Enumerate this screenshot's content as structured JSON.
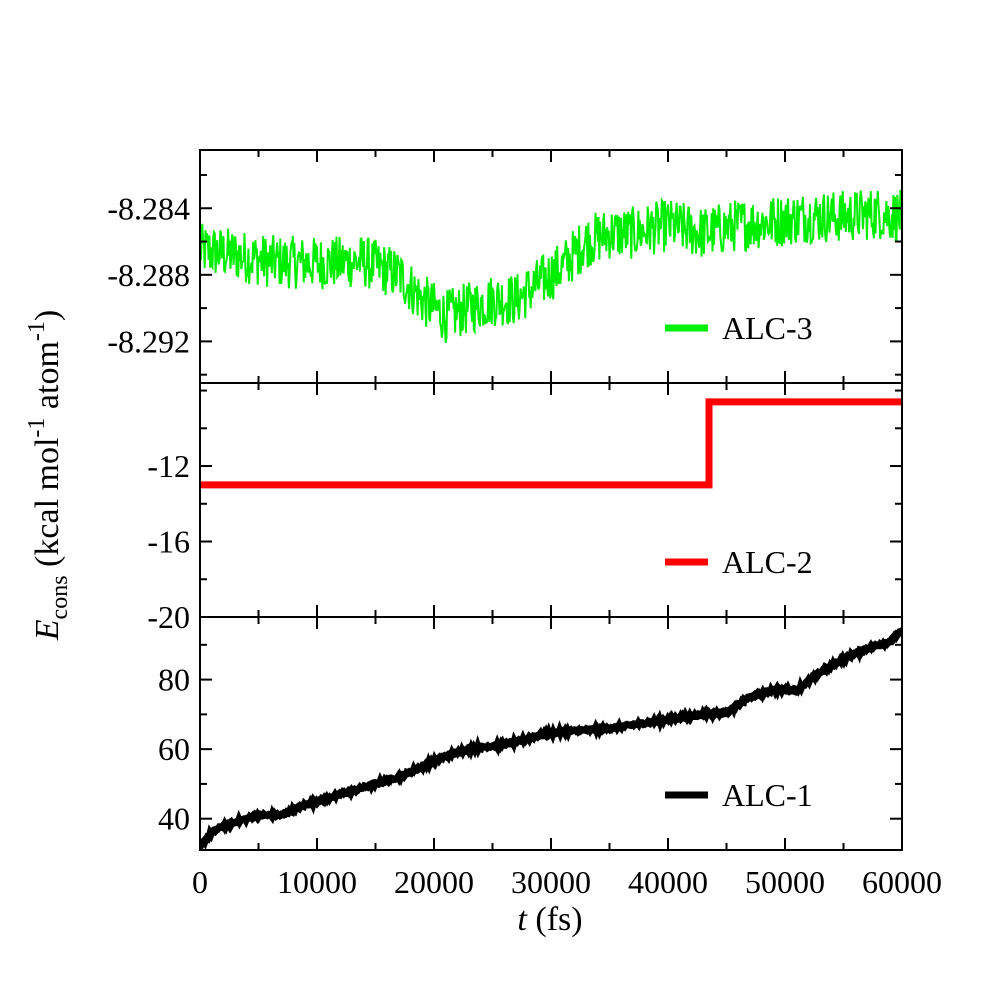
{
  "chart_data": {
    "type": "line",
    "xlabel_italic": "t",
    "xlabel_rest": " (fs)",
    "ylabel_italic": "E",
    "ylabel_sub": "cons",
    "ylabel_main": " (kcal mol",
    "ylabel_sup1": "-1",
    "ylabel_mid": " atom",
    "ylabel_sup2": "-1",
    "ylabel_close": ")",
    "xlim": [
      0,
      60000
    ],
    "xticks": [
      0,
      10000,
      20000,
      30000,
      40000,
      50000,
      60000
    ],
    "grid": false,
    "legend_position": "lower-right of each panel",
    "panels": [
      {
        "series_name": "ALC-3",
        "color": "#00ee00",
        "ylim": [
          -8.2945,
          -8.2805
        ],
        "yticks": [
          -8.284,
          -8.288,
          -8.292
        ],
        "ytick_labels": [
          "-8.284",
          "-8.288",
          "-8.292"
        ],
        "noise": 0.0016,
        "x": [
          0,
          3000,
          6000,
          10000,
          14000,
          17000,
          19000,
          21000,
          23000,
          25000,
          27000,
          29000,
          31000,
          33000,
          35000,
          37000,
          40000,
          43000,
          46000,
          49000,
          52000,
          55000,
          58000,
          60000
        ],
        "y": [
          -8.2865,
          -8.2868,
          -8.2872,
          -8.2873,
          -8.2872,
          -8.288,
          -8.2895,
          -8.2905,
          -8.29,
          -8.2895,
          -8.2895,
          -8.2885,
          -8.2875,
          -8.286,
          -8.2855,
          -8.2855,
          -8.285,
          -8.2855,
          -8.285,
          -8.2848,
          -8.2845,
          -8.2845,
          -8.2843,
          -8.2845
        ]
      },
      {
        "series_name": "ALC-2",
        "color": "#ff0000",
        "ylim": [
          -20,
          -7.6
        ],
        "yticks": [
          -12,
          -16,
          -20
        ],
        "ytick_labels": [
          "-12",
          "-16",
          "-20"
        ],
        "noise": 0,
        "x": [
          0,
          43500,
          43500,
          60000
        ],
        "y": [
          -13.0,
          -13.0,
          -8.6,
          -8.6
        ]
      },
      {
        "series_name": "ALC-1",
        "color": "#000000",
        "ylim": [
          31,
          98
        ],
        "yticks": [
          40,
          60,
          80
        ],
        "ytick_labels": [
          "40",
          "60",
          "80"
        ],
        "noise": 0.4,
        "x": [
          0,
          1000,
          2000,
          3000,
          5000,
          7000,
          9000,
          11000,
          13000,
          15000,
          17000,
          19000,
          21000,
          23000,
          25000,
          27000,
          29000,
          31000,
          33000,
          35000,
          37000,
          39000,
          41000,
          43000,
          45000,
          47000,
          49000,
          51000,
          53000,
          55000,
          57000,
          59000,
          60000
        ],
        "y": [
          32,
          36,
          38,
          39,
          41,
          41,
          44,
          46,
          48,
          50,
          52,
          55,
          58,
          60,
          61,
          62,
          64,
          65,
          65.5,
          66,
          67,
          68,
          69,
          70,
          70.5,
          75,
          77,
          77,
          82,
          86,
          89,
          91,
          94
        ]
      }
    ]
  }
}
